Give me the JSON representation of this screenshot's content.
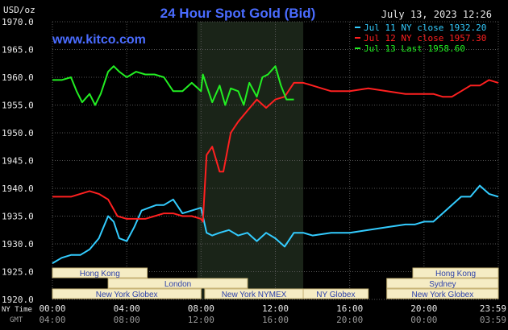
{
  "header": {
    "title": "24 Hour Spot Gold (Bid)",
    "unit": "USD/oz",
    "timestamp": "July 13, 2023 12:26",
    "watermark": "www.kitco.com"
  },
  "colors": {
    "background": "#000000",
    "grid": "#555555",
    "title": "#4a6cff",
    "watermark": "#4a6cff",
    "text": "#e8e8e8",
    "night_band": "#1a2418",
    "session_fill": "#f5ecc4",
    "session_border": "#c8b478",
    "session_text": "#2b3fa8"
  },
  "chart_data": {
    "type": "line",
    "title": "24 Hour Spot Gold (Bid)",
    "ylabel": "USD/oz",
    "ylim": [
      1920,
      1970
    ],
    "yticks": [
      "1970.0",
      "1965.0",
      "1960.0",
      "1955.0",
      "1950.0",
      "1945.0",
      "1940.0",
      "1935.0",
      "1930.0",
      "1925.0",
      "1920.0"
    ],
    "xlim": [
      0,
      24
    ],
    "xticks_ny": [
      "00:00",
      "04:00",
      "08:00",
      "12:00",
      "16:00",
      "20:00",
      "23:59"
    ],
    "xticks_gmt": [
      "04:00",
      "08:00",
      "12:00",
      "16:00",
      "20:00",
      "00:00",
      "03:59"
    ],
    "xtick_hours": [
      0,
      4,
      8,
      12,
      16,
      20,
      24
    ],
    "row_label_ny": "NY Time",
    "row_label_gmt": "GMT",
    "highlight_range": [
      7.8,
      13.5
    ],
    "legend": "top-right",
    "grid": true,
    "series": [
      {
        "name": "Jul 11 NY close 1932.20",
        "color": "#33ccff",
        "x": [
          0,
          0.5,
          1,
          1.5,
          2,
          2.5,
          3,
          3.3,
          3.6,
          4,
          4.4,
          4.8,
          5.2,
          5.6,
          6,
          6.5,
          7,
          7.5,
          8,
          8.3,
          8.6,
          9,
          9.5,
          10,
          10.5,
          11,
          11.5,
          12,
          12.5,
          13,
          13.5,
          14,
          15,
          16,
          17,
          18,
          19,
          19.5,
          20,
          20.5,
          21,
          21.5,
          22,
          22.5,
          23,
          23.5,
          24
        ],
        "y": [
          1926.5,
          1927.5,
          1928,
          1928,
          1929,
          1931,
          1935,
          1934,
          1931,
          1930.5,
          1933,
          1936,
          1936.5,
          1937,
          1937,
          1938,
          1935.5,
          1936,
          1936.5,
          1932,
          1931.5,
          1932,
          1932.5,
          1931.5,
          1932,
          1930.5,
          1932,
          1931,
          1929.5,
          1932,
          1932,
          1931.5,
          1932,
          1932,
          1932.5,
          1933,
          1933.5,
          1933.5,
          1934,
          1934,
          1935.5,
          1937,
          1938.5,
          1938.5,
          1940.5,
          1939,
          1938.5
        ]
      },
      {
        "name": "Jul 12 NY close 1957.30",
        "color": "#ff2020",
        "x": [
          0,
          1,
          2,
          2.5,
          3,
          3.5,
          4,
          4.5,
          5,
          5.5,
          6,
          6.5,
          7,
          7.5,
          8,
          8.1,
          8.3,
          8.6,
          9,
          9.2,
          9.6,
          10,
          10.5,
          11,
          11.5,
          12,
          12.5,
          13,
          13.5,
          14,
          15,
          16,
          17,
          18,
          19,
          20,
          20.5,
          21,
          21.5,
          22,
          22.5,
          23,
          23.5,
          24
        ],
        "y": [
          1938.5,
          1938.5,
          1939.5,
          1939,
          1938,
          1935,
          1934.5,
          1934.5,
          1934.5,
          1935,
          1935.5,
          1935.5,
          1935,
          1935,
          1934.5,
          1934,
          1946,
          1947.5,
          1943,
          1943,
          1950,
          1952,
          1954,
          1956,
          1954.5,
          1956,
          1956.5,
          1959,
          1959,
          1958.5,
          1957.5,
          1957.5,
          1958,
          1957.5,
          1957,
          1957,
          1957,
          1956.5,
          1956.5,
          1957.5,
          1958.5,
          1958.5,
          1959.5,
          1959
        ]
      },
      {
        "name": "Jul 13 Last 1958.60",
        "color": "#22ee22",
        "x": [
          0,
          0.5,
          1,
          1.3,
          1.6,
          2,
          2.3,
          2.6,
          3,
          3.3,
          3.6,
          4,
          4.5,
          5,
          5.5,
          6,
          6.5,
          7,
          7.5,
          8,
          8.1,
          8.3,
          8.6,
          9,
          9.3,
          9.6,
          10,
          10.3,
          10.6,
          11,
          11.3,
          11.6,
          12,
          12.3,
          12.6,
          13
        ],
        "y": [
          1959.5,
          1959.5,
          1960,
          1957.5,
          1955.5,
          1957,
          1955,
          1957,
          1961,
          1962,
          1961,
          1960,
          1961,
          1960.5,
          1960.5,
          1960,
          1957.5,
          1957.5,
          1959,
          1957.5,
          1960.5,
          1958.5,
          1955.5,
          1958.5,
          1955,
          1958,
          1957.5,
          1955,
          1959,
          1956.5,
          1960,
          1960.5,
          1962,
          1958.5,
          1956,
          1956
        ]
      }
    ],
    "sessions": [
      {
        "label": "Hong Kong",
        "row": 0,
        "start": 0,
        "end": 5.1
      },
      {
        "label": "Hong Kong",
        "row": 0,
        "start": 19.4,
        "end": 24
      },
      {
        "label": "London",
        "row": 1,
        "start": 3,
        "end": 10.5
      },
      {
        "label": "Sydney",
        "row": 1,
        "start": 18,
        "end": 24
      },
      {
        "label": "New York Globex",
        "row": 2,
        "start": 0,
        "end": 8
      },
      {
        "label": "New York NYMEX",
        "row": 2,
        "start": 8.2,
        "end": 13.5
      },
      {
        "label": "NY Globex",
        "row": 2,
        "start": 13.5,
        "end": 17
      },
      {
        "label": "New York Globex",
        "row": 2,
        "start": 18,
        "end": 24
      }
    ]
  }
}
